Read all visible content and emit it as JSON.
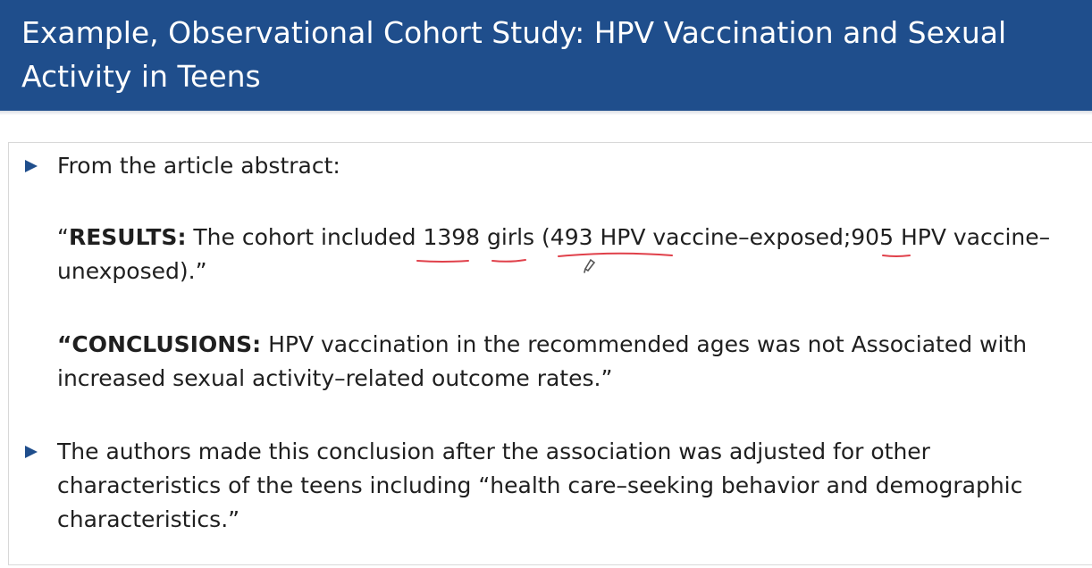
{
  "slide": {
    "title_line1": "Example, Observational Cohort Study: HPV Vaccination and Sexual",
    "title_line2": "Activity in Teens"
  },
  "bullets": [
    {
      "text": "From the article abstract:"
    },
    {
      "line1": "The authors made this conclusion after the association was adjusted for other",
      "line2": "characteristics of the teens including “health care–seeking behavior and demographic",
      "line3": "characteristics.”"
    }
  ],
  "results": {
    "open_quote": "“",
    "label": "RESULTS:",
    "pre": " The cohort included ",
    "total": "1398",
    "sp1": " ",
    "girls": "girls",
    "paren_open": " (",
    "exposed": "493 HPV vaccine",
    "exposed_rest": "–exposed;",
    "unexposed": "905",
    "unexposed_rest": " HPV vaccine–",
    "line2": "unexposed).”"
  },
  "conclusions": {
    "label": "“CONCLUSIONS:",
    "line1": " HPV vaccination in the recommended ages was not Associated with",
    "line2": "increased sexual activity–related outcome rates.”"
  },
  "annotation_color": "#e0404a"
}
